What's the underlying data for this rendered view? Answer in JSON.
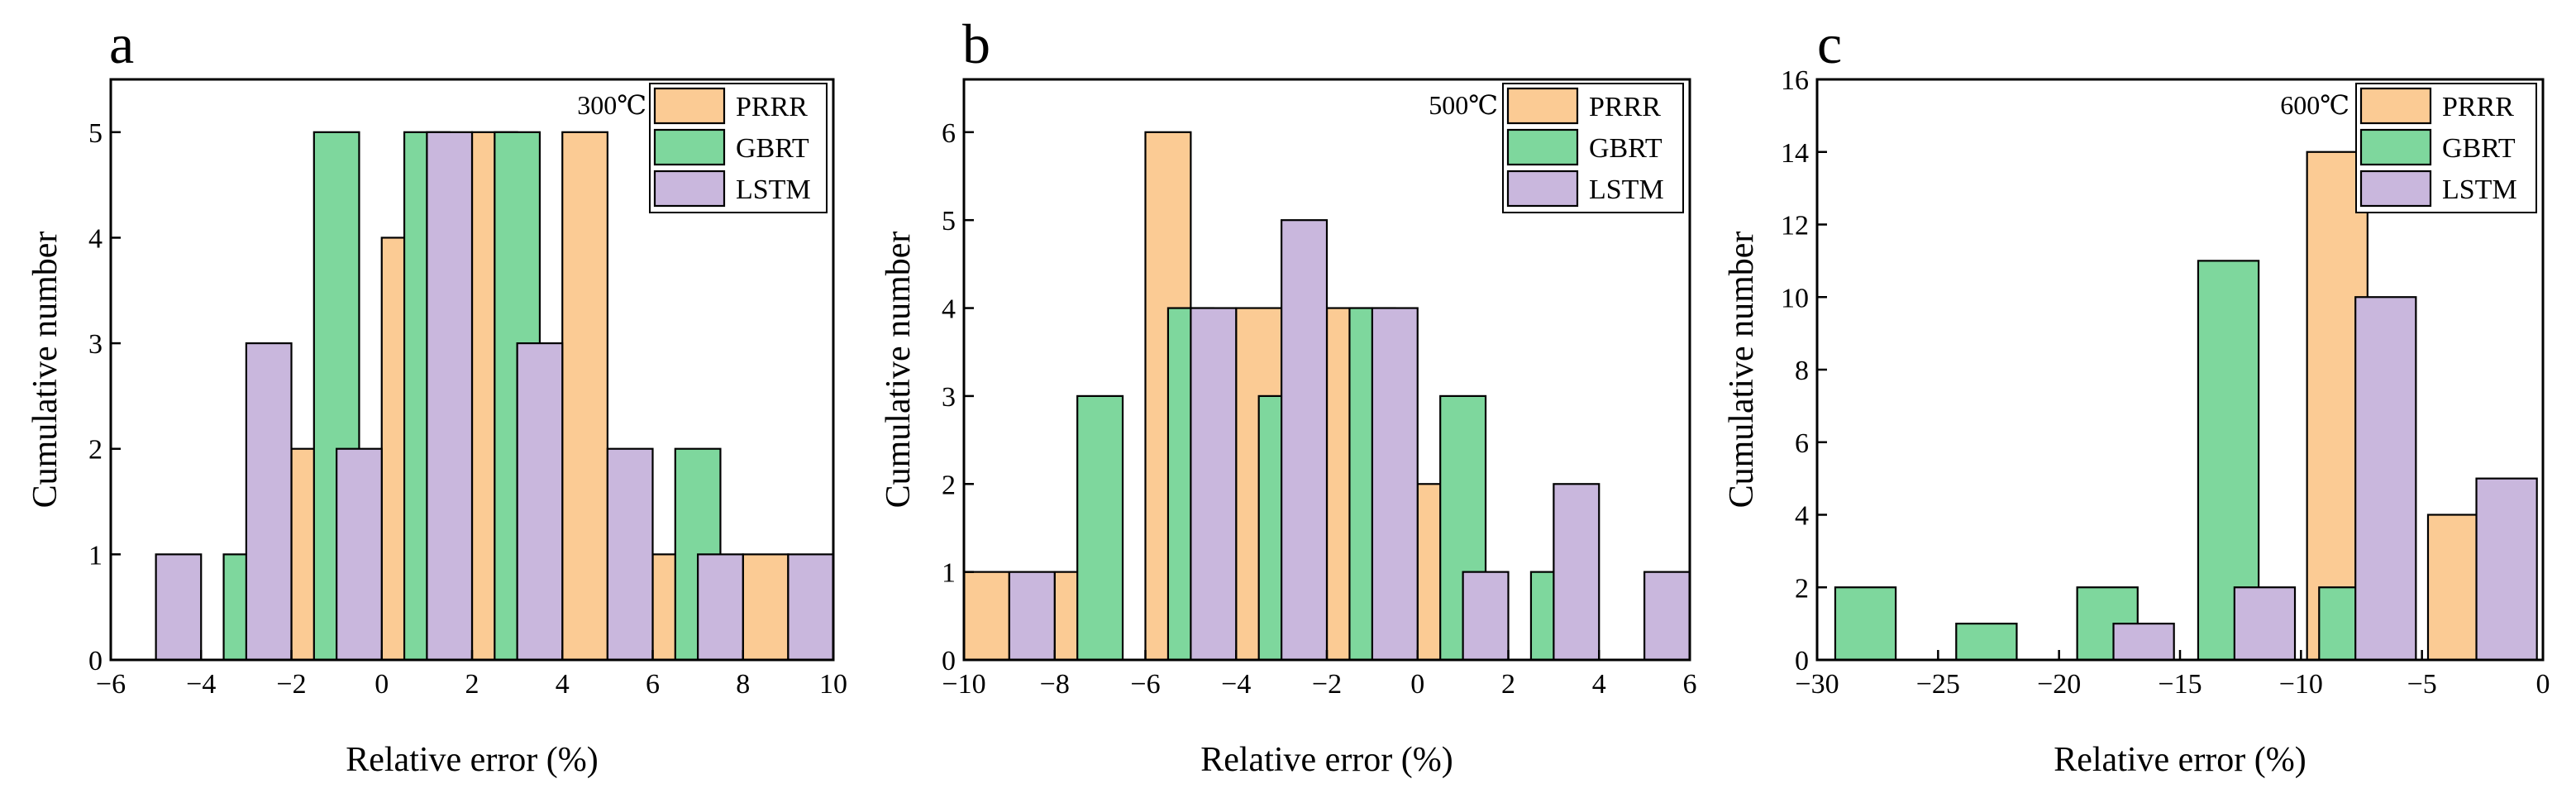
{
  "colors": {
    "PRRR": "#FBCB94",
    "GBRT": "#7ED79D",
    "LSTM": "#C9B7DD"
  },
  "chart_data": [
    {
      "type": "bar",
      "panel": "a",
      "temperature": "300℃",
      "xlabel": "Relative error (%)",
      "ylabel": "Cumulative number",
      "xlim": [
        -6,
        10
      ],
      "ylim": [
        0,
        5.5
      ],
      "xticks": [
        -6,
        -4,
        -2,
        0,
        2,
        4,
        6,
        8,
        10
      ],
      "yticks": [
        0,
        1,
        2,
        3,
        4,
        5
      ],
      "bin_width": 2,
      "legend": [
        "PRRR",
        "GBRT",
        "LSTM"
      ],
      "series": [
        {
          "name": "PRRR",
          "x": [
            -1.5,
            0.5,
            2.5,
            4.5,
            6.5,
            8.5
          ],
          "values": [
            2,
            4,
            5,
            5,
            1,
            1
          ]
        },
        {
          "name": "GBRT",
          "x": [
            -3,
            -1,
            1,
            3,
            7
          ],
          "values": [
            1,
            5,
            5,
            5,
            2
          ]
        },
        {
          "name": "LSTM",
          "x": [
            -4.5,
            -2.5,
            -0.5,
            1.5,
            3.5,
            5.5,
            7.5,
            9.5
          ],
          "values": [
            1,
            3,
            2,
            5,
            3,
            2,
            1,
            1
          ]
        }
      ]
    },
    {
      "type": "bar",
      "panel": "b",
      "temperature": "500℃",
      "xlabel": "Relative error (%)",
      "ylabel": "Cumulative number",
      "xlim": [
        -10,
        6
      ],
      "ylim": [
        0,
        6.6
      ],
      "xticks": [
        -10,
        -8,
        -6,
        -4,
        -2,
        0,
        2,
        4,
        6
      ],
      "yticks": [
        0,
        1,
        2,
        3,
        4,
        5,
        6
      ],
      "bin_width": 2,
      "legend": [
        "PRRR",
        "GBRT",
        "LSTM"
      ],
      "series": [
        {
          "name": "PRRR",
          "x": [
            -9.5,
            -7.5,
            -5.5,
            -3.5,
            -1.5,
            0.5
          ],
          "values": [
            1,
            1,
            6,
            4,
            4,
            2
          ]
        },
        {
          "name": "GBRT",
          "x": [
            -7,
            -5,
            -3,
            -1,
            1,
            3
          ],
          "values": [
            3,
            4,
            3,
            4,
            3,
            1
          ]
        },
        {
          "name": "LSTM",
          "x": [
            -8.5,
            -4.5,
            -2.5,
            -0.5,
            1.5,
            3.5,
            5.5
          ],
          "values": [
            1,
            4,
            5,
            4,
            1,
            2,
            1
          ]
        }
      ]
    },
    {
      "type": "bar",
      "panel": "c",
      "temperature": "600℃",
      "xlabel": "Relative error (%)",
      "ylabel": "Cumulative number",
      "xlim": [
        -30,
        0
      ],
      "ylim": [
        0,
        16
      ],
      "xticks": [
        -30,
        -25,
        -20,
        -15,
        -10,
        -5,
        0
      ],
      "yticks": [
        0,
        2,
        4,
        6,
        8,
        10,
        12,
        14,
        16
      ],
      "bin_width": 5,
      "legend": [
        "PRRR",
        "GBRT",
        "LSTM"
      ],
      "series": [
        {
          "name": "PRRR",
          "x": [
            -8.5,
            -3.5
          ],
          "values": [
            14,
            4
          ]
        },
        {
          "name": "GBRT",
          "x": [
            -28,
            -23,
            -18,
            -13,
            -8
          ],
          "values": [
            2,
            1,
            2,
            11,
            2
          ]
        },
        {
          "name": "LSTM",
          "x": [
            -16.5,
            -11.5,
            -6.5,
            -1.5
          ],
          "values": [
            1,
            2,
            10,
            5
          ]
        }
      ]
    }
  ]
}
